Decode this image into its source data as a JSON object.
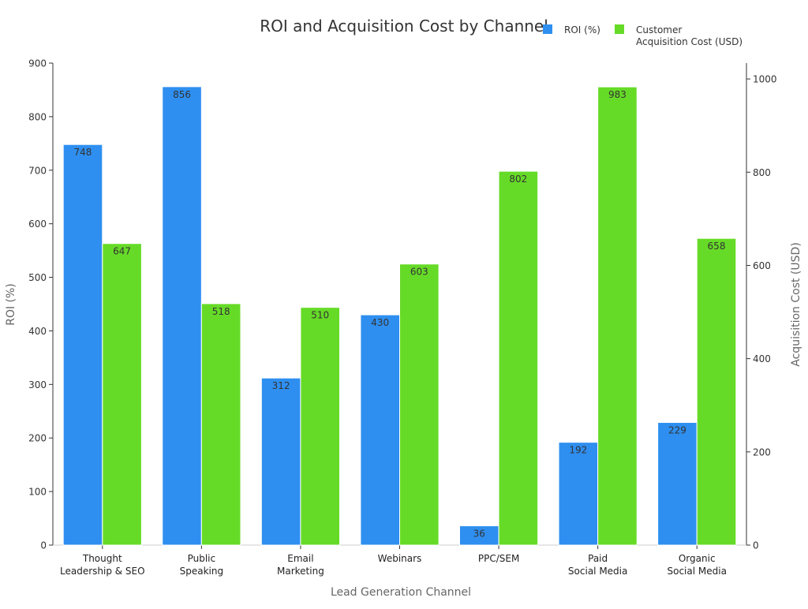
{
  "chart_data": {
    "type": "bar",
    "title": "ROI and Acquisition Cost by Channel",
    "xlabel": "Lead Generation Channel",
    "ylabel_left": "ROI (%)",
    "ylabel_right": "Acquisition Cost (USD)",
    "categories": [
      [
        "Thought",
        "Leadership & SEO"
      ],
      [
        "Public",
        "Speaking"
      ],
      [
        "Email",
        "Marketing"
      ],
      [
        "Webinars"
      ],
      [
        "PPC/SEM"
      ],
      [
        "Paid",
        "Social Media"
      ],
      [
        "Organic",
        "Social Media"
      ]
    ],
    "series": [
      {
        "name": "ROI (%)",
        "legend_lines": [
          "ROI (%)"
        ],
        "axis": "left",
        "color": "#2e8ff0",
        "values": [
          748,
          856,
          312,
          430,
          36,
          192,
          229
        ]
      },
      {
        "name": "Customer Acquisition Cost (USD)",
        "legend_lines": [
          "Customer",
          "Acquisition Cost (USD)"
        ],
        "axis": "right",
        "color": "#66db27",
        "values": [
          647,
          518,
          510,
          603,
          802,
          983,
          658
        ]
      }
    ],
    "ylim_left": [
      0,
      900
    ],
    "ylim_right": [
      0,
      1034
    ],
    "yticks_left": [
      0,
      100,
      200,
      300,
      400,
      500,
      600,
      700,
      800,
      900
    ],
    "yticks_right": [
      0,
      200,
      400,
      600,
      800,
      1000
    ],
    "grid": false,
    "legend_position": "top-right",
    "data_labels": true
  }
}
